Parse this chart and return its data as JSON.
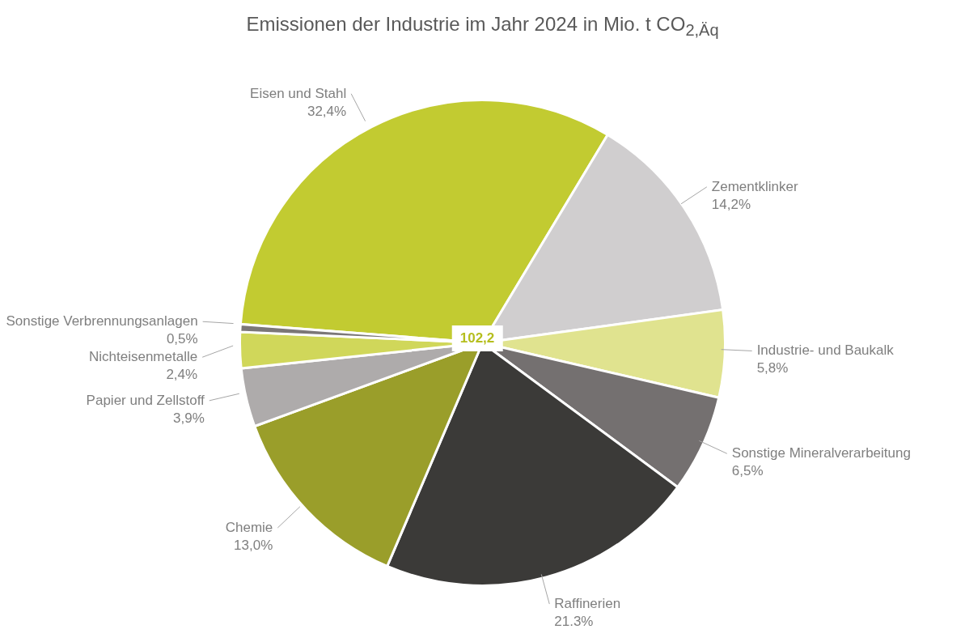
{
  "chart_data": {
    "type": "pie",
    "title": "Emissionen der Industrie im Jahr 2024  in Mio. t CO$_{2,Äq}$",
    "categories": [
      "Eisen und Stahl",
      "Zementklinker",
      "Industrie- und Baukalk",
      "Sonstige Mineralverarbeitung",
      "Raffinerien",
      "Chemie",
      "Papier und Zellstoff",
      "Nichteisenmetalle",
      "Sonstige Verbrennungsanlagen"
    ],
    "values": [
      32.4,
      14.2,
      5.8,
      6.5,
      21.3,
      13.0,
      3.9,
      2.4,
      0.5
    ],
    "value_labels": [
      "32,4%",
      "14,2%",
      "5,8%",
      "6,5%",
      "21.3%",
      "13,0%",
      "3,9%",
      "2,4%",
      "0,5%"
    ],
    "colors": [
      "#c2cb31",
      "#d0cecf",
      "#e0e38f",
      "#747070",
      "#3b3a38",
      "#9a9e2a",
      "#aeabab",
      "#d0d75a",
      "#7b7777"
    ],
    "annotations": [
      "102,2"
    ]
  }
}
